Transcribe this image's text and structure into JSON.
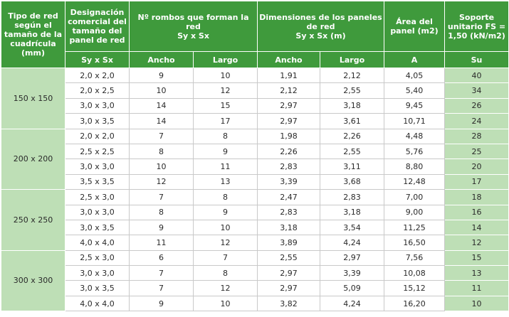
{
  "header": {
    "tipo_red": "Tipo de red según el tamaño de la cuadrícula (mm)",
    "designacion": "Designación comercial del tamaño del panel de red",
    "rombos": "Nº rombos que forman la red",
    "rombos_sub": "Sy x Sx",
    "dimensiones": "Dimensiones de los paneles de red",
    "dimensiones_sub": "Sy x Sx (m)",
    "area": "Área del panel (m2)",
    "soporte": "Soporte unitario FS = 1,50 (kN/m2)",
    "sub_designacion": "Sy x Sx",
    "sub_ancho": "Ancho",
    "sub_largo": "Largo",
    "sub_ancho2": "Ancho",
    "sub_largo2": "Largo",
    "sub_area": "A",
    "sub_su": "Su"
  },
  "groups": [
    {
      "label": "150 x 150",
      "rows": [
        [
          "2,0 x 2,0",
          "9",
          "10",
          "1,91",
          "2,12",
          "4,05",
          "40"
        ],
        [
          "2,0 x 2,5",
          "10",
          "12",
          "2,12",
          "2,55",
          "5,40",
          "34"
        ],
        [
          "3,0 x 3,0",
          "14",
          "15",
          "2,97",
          "3,18",
          "9,45",
          "26"
        ],
        [
          "3,0 x 3,5",
          "14",
          "17",
          "2,97",
          "3,61",
          "10,71",
          "24"
        ]
      ]
    },
    {
      "label": "200 x 200",
      "rows": [
        [
          "2,0 x 2,0",
          "7",
          "8",
          "1,98",
          "2,26",
          "4,48",
          "28"
        ],
        [
          "2,5 x 2,5",
          "8",
          "9",
          "2,26",
          "2,55",
          "5,76",
          "25"
        ],
        [
          "3,0 x 3,0",
          "10",
          "11",
          "2,83",
          "3,11",
          "8,80",
          "20"
        ],
        [
          "3,5 x 3,5",
          "12",
          "13",
          "3,39",
          "3,68",
          "12,48",
          "17"
        ]
      ]
    },
    {
      "label": "250 x 250",
      "rows": [
        [
          "2,5 x 3,0",
          "7",
          "8",
          "2,47",
          "2,83",
          "7,00",
          "18"
        ],
        [
          "3,0 x 3,0",
          "8",
          "9",
          "2,83",
          "3,18",
          "9,00",
          "16"
        ],
        [
          "3,0 x 3,5",
          "9",
          "10",
          "3,18",
          "3,54",
          "11,25",
          "14"
        ],
        [
          "4,0 x 4,0",
          "11",
          "12",
          "3,89",
          "4,24",
          "16,50",
          "12"
        ]
      ]
    },
    {
      "label": "300 x 300",
      "rows": [
        [
          "2,5 x 3,0",
          "6",
          "7",
          "2,55",
          "2,97",
          "7,56",
          "15"
        ],
        [
          "3,0 x 3,0",
          "7",
          "8",
          "2,97",
          "3,39",
          "10,08",
          "13"
        ],
        [
          "3,0 x 3,5",
          "7",
          "12",
          "2,97",
          "5,09",
          "15,12",
          "11"
        ],
        [
          "4,0 x 4,0",
          "9",
          "10",
          "3,82",
          "4,24",
          "16,20",
          "10"
        ]
      ]
    }
  ],
  "colors": {
    "header_green": "#3f9a3c",
    "light_green": "#bedfb6",
    "border_gray": "#c9c9c9"
  }
}
